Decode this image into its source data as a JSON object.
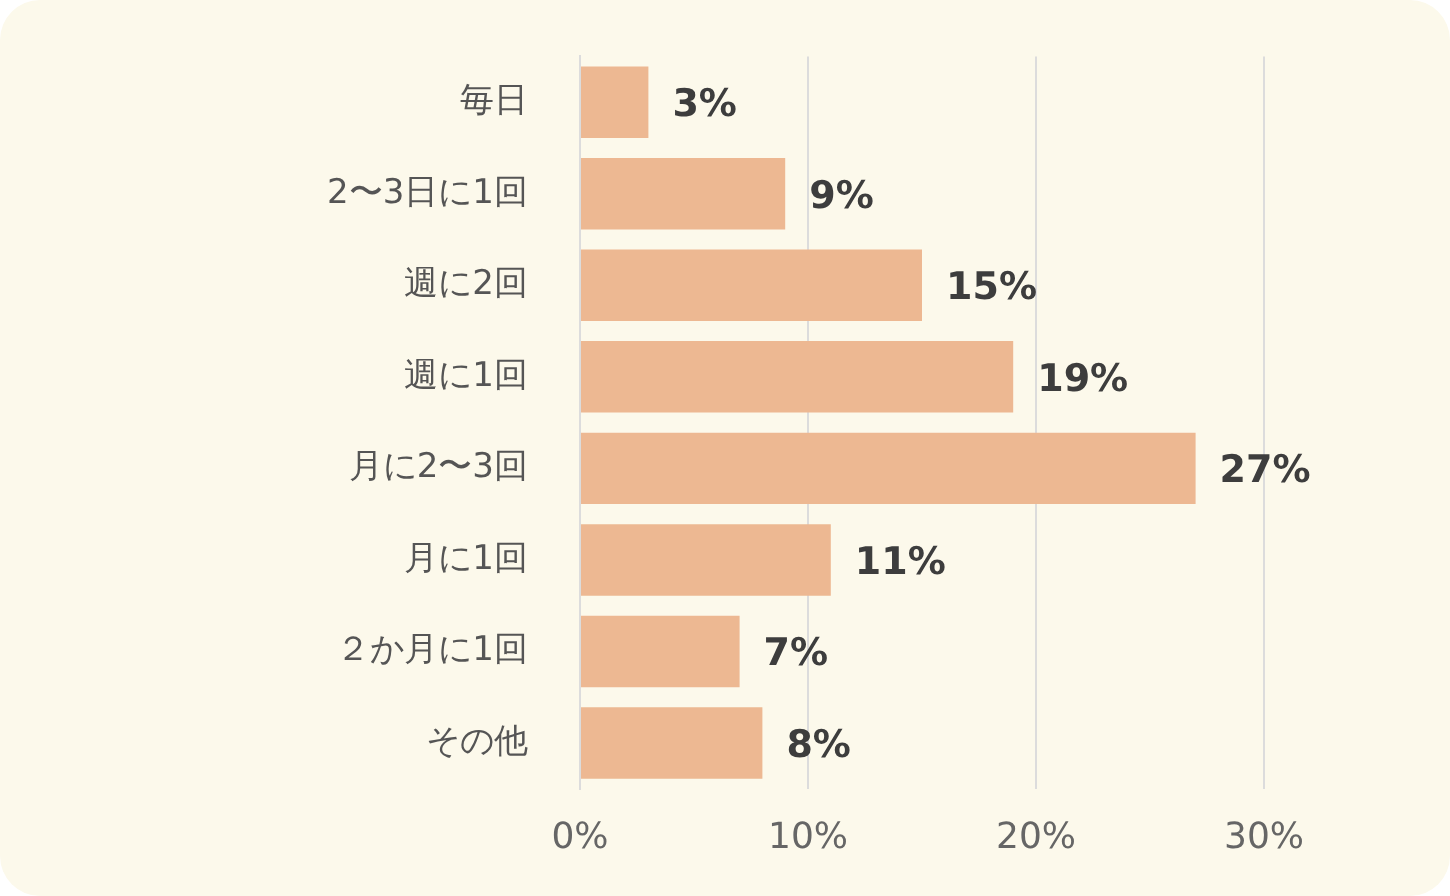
{
  "chart_data": {
    "type": "bar",
    "orientation": "horizontal",
    "categories": [
      "毎日",
      "2〜3日に1回",
      "週に2回",
      "週に1回",
      "月に2〜3回",
      "月に1回",
      "２か月に1回",
      "その他"
    ],
    "values": [
      3,
      9,
      15,
      19,
      27,
      11,
      7,
      8
    ],
    "value_labels": [
      "3%",
      "9%",
      "15%",
      "19%",
      "27%",
      "11%",
      "7%",
      "8%"
    ],
    "color": "#edb892",
    "xlim": [
      0,
      30
    ],
    "xticks": [
      {
        "value": 0,
        "label": "0%"
      },
      {
        "value": 10,
        "label": "10%"
      },
      {
        "value": 20,
        "label": "20%"
      },
      {
        "value": 30,
        "label": "30%"
      }
    ],
    "grid": "x",
    "legend": false
  }
}
